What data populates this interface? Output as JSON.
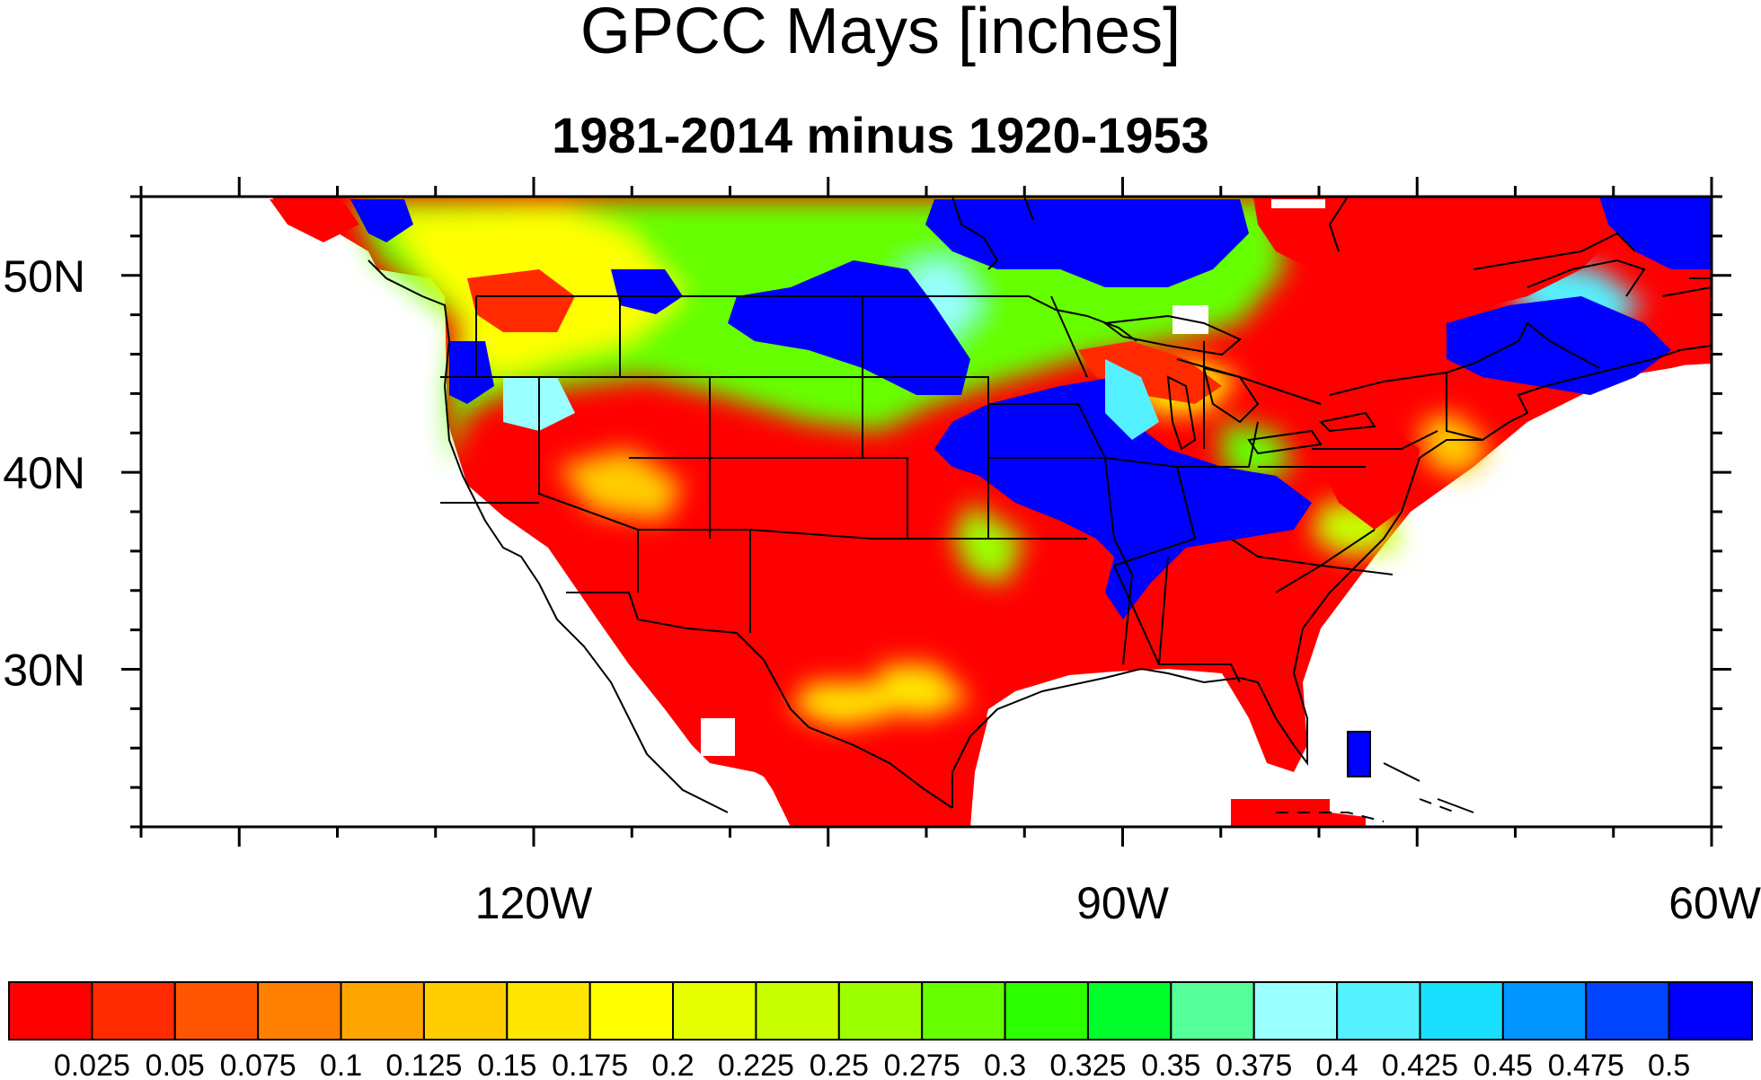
{
  "title": "GPCC Mays [inches]",
  "subtitle": "1981-2014 minus 1920-1953",
  "map": {
    "region": "continental United States",
    "projection": "cylindrical equidistant",
    "lon_range": [
      -140,
      -60
    ],
    "lat_range": [
      22,
      54
    ],
    "x_ticks": [
      {
        "lon": -120,
        "label": "120W"
      },
      {
        "lon": -90,
        "label": "90W"
      },
      {
        "lon": -60,
        "label": "60W"
      }
    ],
    "y_ticks": [
      {
        "lat": 30,
        "label": "30N"
      },
      {
        "lat": 40,
        "label": "40N"
      },
      {
        "lat": 50,
        "label": "50N"
      }
    ],
    "features": [
      "coastlines",
      "state boundaries",
      "national boundaries"
    ]
  },
  "colorbar": {
    "labels": [
      "0.025",
      "0.05",
      "0.075",
      "0.1",
      "0.125",
      "0.15",
      "0.175",
      "0.2",
      "0.225",
      "0.25",
      "0.275",
      "0.3",
      "0.325",
      "0.35",
      "0.375",
      "0.4",
      "0.425",
      "0.45",
      "0.475",
      "0.5"
    ],
    "colors": [
      "#ff0000",
      "#ff2a00",
      "#ff5500",
      "#ff8000",
      "#ffa500",
      "#ffcc00",
      "#ffe600",
      "#ffff00",
      "#e6ff00",
      "#c8ff00",
      "#9bff00",
      "#66ff00",
      "#2bff00",
      "#00ff2b",
      "#55ff99",
      "#99ffff",
      "#55f0ff",
      "#1ae0ff",
      "#0095ff",
      "#0044ff",
      "#0000ff"
    ]
  },
  "chart_data": {
    "type": "heatmap",
    "title": "GPCC Mays [inches]",
    "subtitle": "1981-2014 minus 1920-1953",
    "xlabel": "",
    "ylabel": "",
    "xlim": [
      -140,
      -60
    ],
    "ylim": [
      22,
      54
    ],
    "levels": [
      0.025,
      0.05,
      0.075,
      0.1,
      0.125,
      0.15,
      0.175,
      0.2,
      0.225,
      0.25,
      0.275,
      0.3,
      0.325,
      0.35,
      0.375,
      0.4,
      0.425,
      0.45,
      0.475,
      0.5
    ],
    "pattern": [
      {
        "region": "Southwest US and Mexico",
        "value": 0.0
      },
      {
        "region": "Southern Great Plains and Texas",
        "value": 0.0
      },
      {
        "region": "Southeast US",
        "value": 0.0
      },
      {
        "region": "Northern Great Plains",
        "value": 0.5
      },
      {
        "region": "Mississippi and Ohio Valleys",
        "value": 0.5
      },
      {
        "region": "Northern Ontario",
        "value": 0.5
      },
      {
        "region": "New England and Maritimes",
        "value": 0.5
      },
      {
        "region": "Quebec and Labrador",
        "value": 0.0
      },
      {
        "region": "Pacific Northwest",
        "value": 0.35
      }
    ]
  }
}
